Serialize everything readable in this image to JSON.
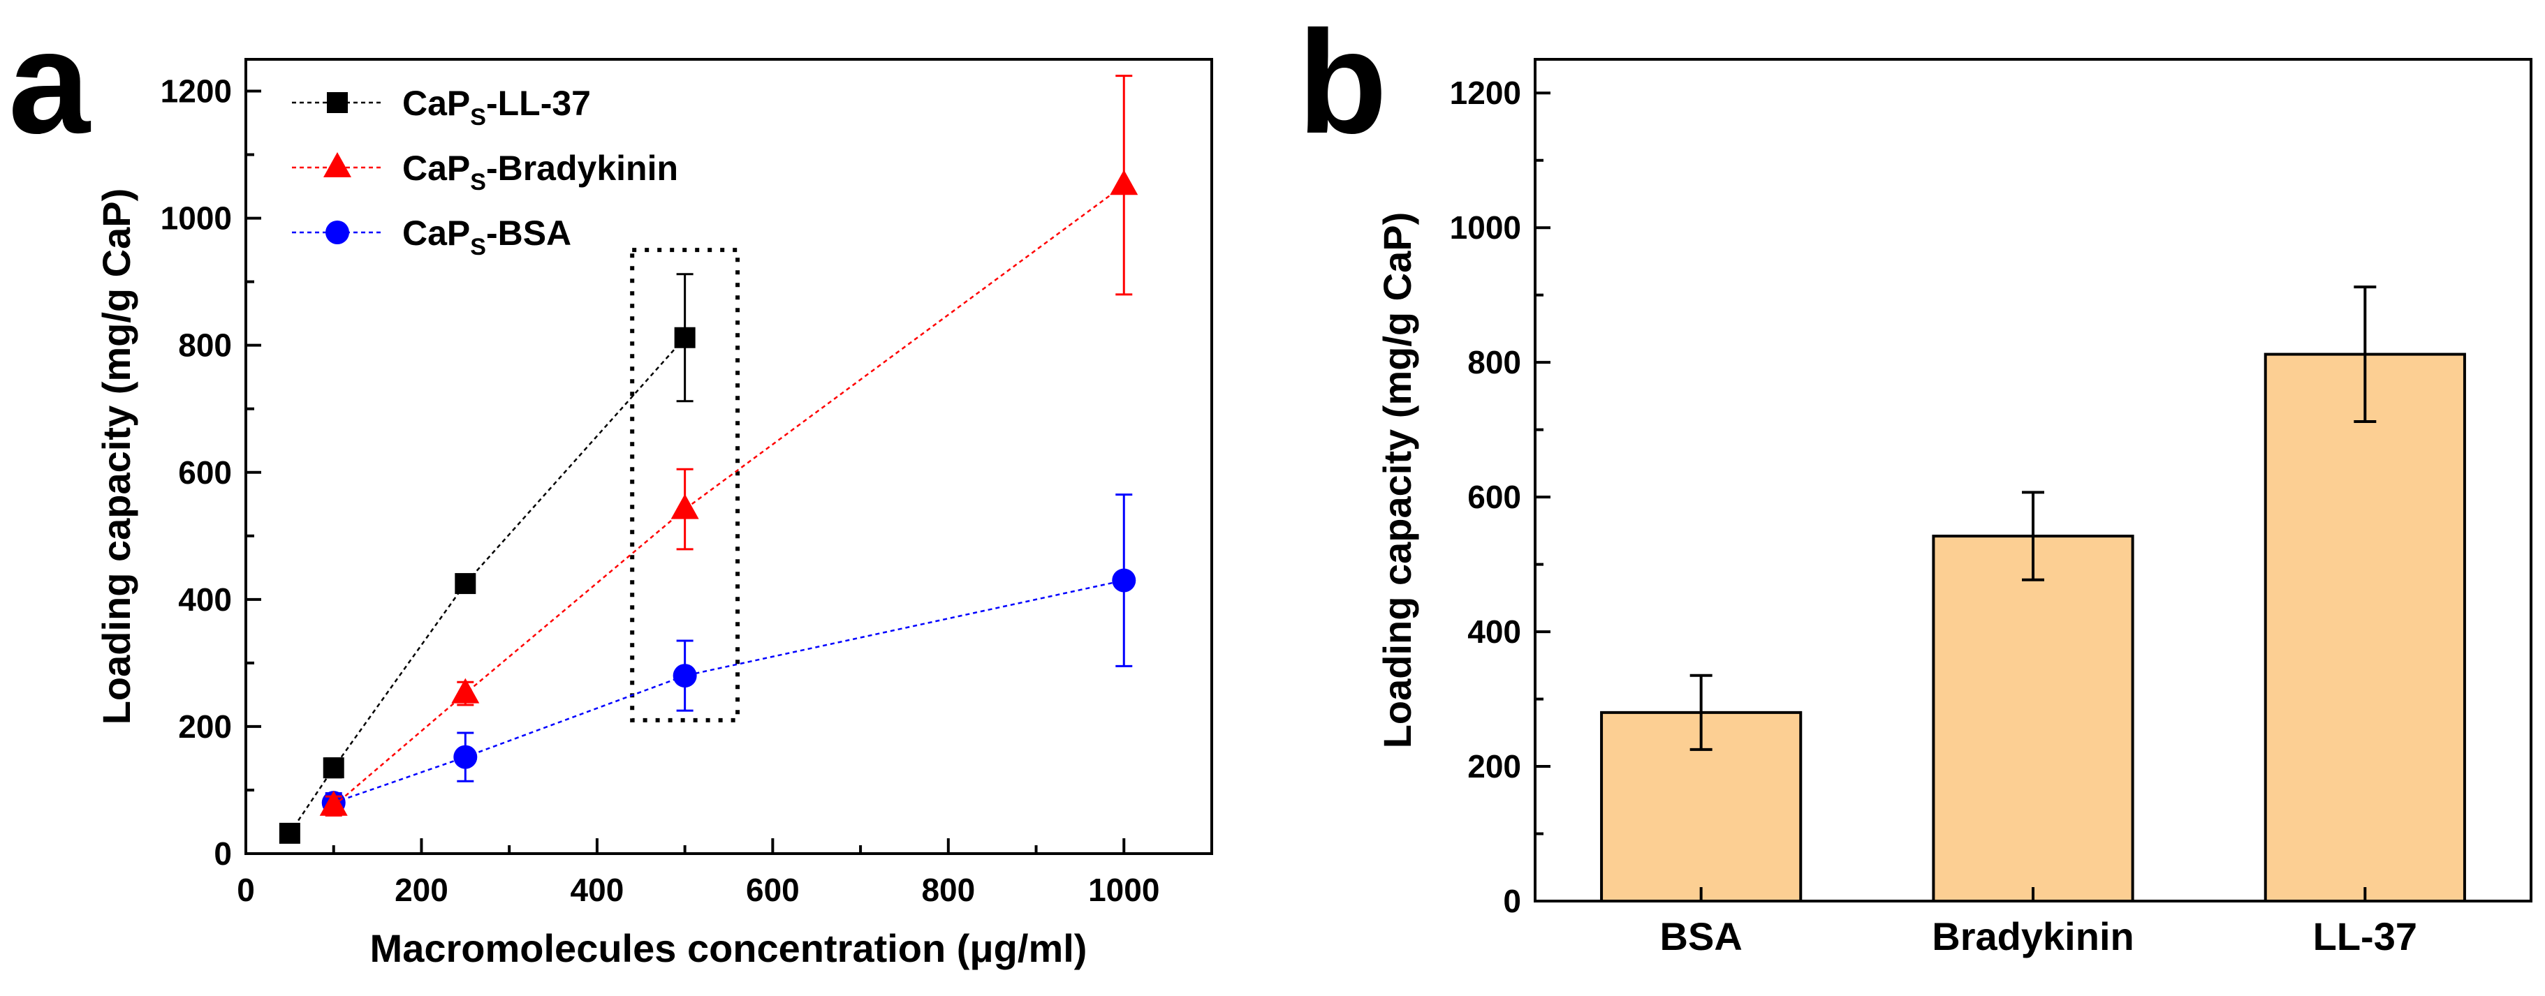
{
  "panels": {
    "a": {
      "letter": "a"
    },
    "b": {
      "letter": "b"
    }
  },
  "chart_data": [
    {
      "type": "line",
      "panel": "a",
      "title": "",
      "xlabel": "Macromolecules concentration (μg/ml)",
      "ylabel": "Loading capacity (mg/g CaP)",
      "xlim": [
        0,
        1100
      ],
      "ylim": [
        0,
        1250
      ],
      "xticks": [
        0,
        200,
        400,
        600,
        800,
        1000
      ],
      "yticks": [
        0,
        200,
        400,
        600,
        800,
        1000,
        1200
      ],
      "grid": false,
      "legend_position": "top-left",
      "series": [
        {
          "name_main": "CaP",
          "name_sub": "S",
          "name_rest": "-LL-37",
          "marker": "square",
          "color": "#000000",
          "x": [
            50,
            100,
            250,
            500
          ],
          "y": [
            32,
            135,
            425,
            812
          ],
          "err": [
            12,
            15,
            12,
            100
          ]
        },
        {
          "name_main": "CaP",
          "name_sub": "S",
          "name_rest": "-Bradykinin",
          "marker": "triangle",
          "color": "#ff0000",
          "x": [
            100,
            250,
            500,
            1000
          ],
          "y": [
            75,
            252,
            542,
            1052
          ],
          "err": [
            15,
            18,
            63,
            172
          ]
        },
        {
          "name_main": "CaP",
          "name_sub": "S",
          "name_rest": "-BSA",
          "marker": "circle",
          "color": "#0000ff",
          "x": [
            100,
            250,
            500,
            1000
          ],
          "y": [
            80,
            152,
            280,
            430
          ],
          "err": [
            15,
            38,
            55,
            135
          ]
        }
      ],
      "annotation": {
        "type": "dotted-box",
        "x_range": [
          440,
          560
        ],
        "y_range": [
          210,
          950
        ]
      }
    },
    {
      "type": "bar",
      "panel": "b",
      "title": "",
      "xlabel": "",
      "ylabel": "Loading capacity (mg/g CaP)",
      "ylim": [
        0,
        1250
      ],
      "yticks": [
        0,
        200,
        400,
        600,
        800,
        1000,
        1200
      ],
      "grid": false,
      "bar_color": "#fccf93",
      "categories": [
        "BSA",
        "Bradykinin",
        "LL-37"
      ],
      "values": [
        280,
        542,
        812
      ],
      "err": [
        55,
        65,
        100
      ]
    }
  ]
}
